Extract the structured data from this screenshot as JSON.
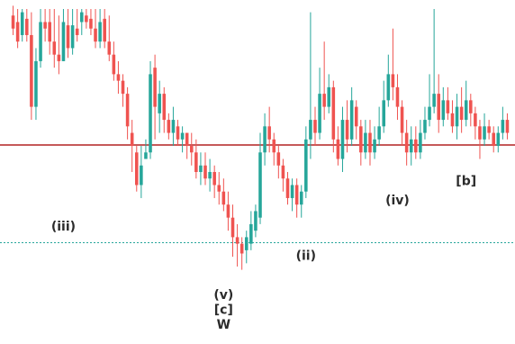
{
  "chart_data": {
    "type": "candlestick",
    "title": "",
    "xlabel": "",
    "ylabel": "",
    "grid": false,
    "legend": "none",
    "ylim": [
      0,
      100
    ],
    "colors": {
      "up": "#26a69a",
      "down": "#ef5350",
      "level_line": "#b22222",
      "dotted_level": "#26a69a",
      "label": "#2b2b2b"
    },
    "levels": {
      "horizontal_line": 58.3,
      "dotted_line": 28.3
    },
    "candles": [
      {
        "o": 98,
        "c": 94,
        "h": 101,
        "l": 92
      },
      {
        "o": 96,
        "c": 90,
        "h": 100,
        "l": 88
      },
      {
        "o": 92,
        "c": 99,
        "h": 100,
        "l": 90
      },
      {
        "o": 97,
        "c": 92,
        "h": 100,
        "l": 90
      },
      {
        "o": 92,
        "c": 70,
        "h": 99,
        "l": 66
      },
      {
        "o": 70,
        "c": 84,
        "h": 88,
        "l": 66
      },
      {
        "o": 84,
        "c": 96,
        "h": 100,
        "l": 82
      },
      {
        "o": 96,
        "c": 94,
        "h": 100,
        "l": 90
      },
      {
        "o": 96,
        "c": 90,
        "h": 100,
        "l": 86
      },
      {
        "o": 90,
        "c": 86,
        "h": 100,
        "l": 82
      },
      {
        "o": 86,
        "c": 84,
        "h": 98,
        "l": 80
      },
      {
        "o": 84,
        "c": 96,
        "h": 100,
        "l": 84
      },
      {
        "o": 95,
        "c": 88,
        "h": 100,
        "l": 85
      },
      {
        "o": 88,
        "c": 95,
        "h": 100,
        "l": 86
      },
      {
        "o": 94,
        "c": 92,
        "h": 100,
        "l": 90
      },
      {
        "o": 96,
        "c": 99,
        "h": 100,
        "l": 92
      },
      {
        "o": 98,
        "c": 96,
        "h": 100,
        "l": 94
      },
      {
        "o": 97,
        "c": 94,
        "h": 100,
        "l": 92
      },
      {
        "o": 94,
        "c": 90,
        "h": 100,
        "l": 88
      },
      {
        "o": 90,
        "c": 96,
        "h": 100,
        "l": 88
      },
      {
        "o": 97,
        "c": 90,
        "h": 100,
        "l": 88
      },
      {
        "o": 90,
        "c": 86,
        "h": 98,
        "l": 84
      },
      {
        "o": 86,
        "c": 80,
        "h": 90,
        "l": 78
      },
      {
        "o": 80,
        "c": 78,
        "h": 84,
        "l": 74
      },
      {
        "o": 78,
        "c": 74,
        "h": 80,
        "l": 70
      },
      {
        "o": 74,
        "c": 64,
        "h": 76,
        "l": 60
      },
      {
        "o": 62,
        "c": 58,
        "h": 66,
        "l": 50
      },
      {
        "o": 56,
        "c": 46,
        "h": 58,
        "l": 44
      },
      {
        "o": 46,
        "c": 52,
        "h": 58,
        "l": 42
      },
      {
        "o": 54,
        "c": 56,
        "h": 60,
        "l": 54
      },
      {
        "o": 56,
        "c": 80,
        "h": 84,
        "l": 54
      },
      {
        "o": 82,
        "c": 70,
        "h": 86,
        "l": 60
      },
      {
        "o": 68,
        "c": 74,
        "h": 78,
        "l": 62
      },
      {
        "o": 74,
        "c": 66,
        "h": 76,
        "l": 62
      },
      {
        "o": 66,
        "c": 62,
        "h": 68,
        "l": 60
      },
      {
        "o": 62,
        "c": 66,
        "h": 70,
        "l": 58
      },
      {
        "o": 64,
        "c": 60,
        "h": 66,
        "l": 58
      },
      {
        "o": 60,
        "c": 62,
        "h": 64,
        "l": 56
      },
      {
        "o": 62,
        "c": 58,
        "h": 62,
        "l": 54
      },
      {
        "o": 58,
        "c": 56,
        "h": 62,
        "l": 52
      },
      {
        "o": 56,
        "c": 50,
        "h": 60,
        "l": 48
      },
      {
        "o": 50,
        "c": 52,
        "h": 56,
        "l": 46
      },
      {
        "o": 52,
        "c": 48,
        "h": 56,
        "l": 46
      },
      {
        "o": 48,
        "c": 50,
        "h": 54,
        "l": 44
      },
      {
        "o": 50,
        "c": 46,
        "h": 52,
        "l": 42
      },
      {
        "o": 46,
        "c": 44,
        "h": 50,
        "l": 40
      },
      {
        "o": 44,
        "c": 40,
        "h": 48,
        "l": 38
      },
      {
        "o": 40,
        "c": 36,
        "h": 44,
        "l": 32
      },
      {
        "o": 36,
        "c": 30,
        "h": 40,
        "l": 24
      },
      {
        "o": 30,
        "c": 28,
        "h": 34,
        "l": 21
      },
      {
        "o": 28,
        "c": 25,
        "h": 30,
        "l": 20
      },
      {
        "o": 26,
        "c": 30,
        "h": 32,
        "l": 22
      },
      {
        "o": 28,
        "c": 34,
        "h": 38,
        "l": 26
      },
      {
        "o": 32,
        "c": 38,
        "h": 40,
        "l": 30
      },
      {
        "o": 36,
        "c": 56,
        "h": 62,
        "l": 34
      },
      {
        "o": 56,
        "c": 64,
        "h": 68,
        "l": 52
      },
      {
        "o": 64,
        "c": 60,
        "h": 70,
        "l": 56
      },
      {
        "o": 60,
        "c": 56,
        "h": 62,
        "l": 52
      },
      {
        "o": 56,
        "c": 52,
        "h": 58,
        "l": 48
      },
      {
        "o": 52,
        "c": 48,
        "h": 54,
        "l": 44
      },
      {
        "o": 48,
        "c": 42,
        "h": 50,
        "l": 40
      },
      {
        "o": 42,
        "c": 46,
        "h": 48,
        "l": 38
      },
      {
        "o": 46,
        "c": 40,
        "h": 48,
        "l": 36
      },
      {
        "o": 40,
        "c": 44,
        "h": 46,
        "l": 36
      },
      {
        "o": 44,
        "c": 60,
        "h": 64,
        "l": 42
      },
      {
        "o": 60,
        "c": 66,
        "h": 99,
        "l": 54
      },
      {
        "o": 66,
        "c": 62,
        "h": 70,
        "l": 58
      },
      {
        "o": 62,
        "c": 74,
        "h": 82,
        "l": 60
      },
      {
        "o": 74,
        "c": 70,
        "h": 90,
        "l": 66
      },
      {
        "o": 70,
        "c": 76,
        "h": 80,
        "l": 68
      },
      {
        "o": 76,
        "c": 60,
        "h": 78,
        "l": 56
      },
      {
        "o": 60,
        "c": 54,
        "h": 64,
        "l": 52
      },
      {
        "o": 54,
        "c": 66,
        "h": 70,
        "l": 50
      },
      {
        "o": 66,
        "c": 60,
        "h": 72,
        "l": 56
      },
      {
        "o": 60,
        "c": 72,
        "h": 76,
        "l": 58
      },
      {
        "o": 70,
        "c": 64,
        "h": 72,
        "l": 60
      },
      {
        "o": 64,
        "c": 56,
        "h": 66,
        "l": 52
      },
      {
        "o": 56,
        "c": 62,
        "h": 66,
        "l": 54
      },
      {
        "o": 62,
        "c": 56,
        "h": 66,
        "l": 52
      },
      {
        "o": 56,
        "c": 60,
        "h": 64,
        "l": 54
      },
      {
        "o": 60,
        "c": 64,
        "h": 70,
        "l": 58
      },
      {
        "o": 64,
        "c": 72,
        "h": 78,
        "l": 62
      },
      {
        "o": 72,
        "c": 80,
        "h": 86,
        "l": 70
      },
      {
        "o": 80,
        "c": 76,
        "h": 94,
        "l": 72
      },
      {
        "o": 76,
        "c": 70,
        "h": 80,
        "l": 66
      },
      {
        "o": 70,
        "c": 62,
        "h": 72,
        "l": 58
      },
      {
        "o": 62,
        "c": 56,
        "h": 66,
        "l": 52
      },
      {
        "o": 56,
        "c": 60,
        "h": 64,
        "l": 52
      },
      {
        "o": 60,
        "c": 56,
        "h": 64,
        "l": 54
      },
      {
        "o": 56,
        "c": 62,
        "h": 66,
        "l": 54
      },
      {
        "o": 62,
        "c": 66,
        "h": 70,
        "l": 60
      },
      {
        "o": 66,
        "c": 70,
        "h": 80,
        "l": 64
      },
      {
        "o": 70,
        "c": 74,
        "h": 100,
        "l": 68
      },
      {
        "o": 74,
        "c": 66,
        "h": 80,
        "l": 62
      },
      {
        "o": 66,
        "c": 72,
        "h": 76,
        "l": 64
      },
      {
        "o": 72,
        "c": 68,
        "h": 76,
        "l": 66
      },
      {
        "o": 68,
        "c": 64,
        "h": 72,
        "l": 62
      },
      {
        "o": 64,
        "c": 70,
        "h": 74,
        "l": 60
      },
      {
        "o": 70,
        "c": 66,
        "h": 76,
        "l": 62
      },
      {
        "o": 66,
        "c": 72,
        "h": 78,
        "l": 64
      },
      {
        "o": 72,
        "c": 68,
        "h": 74,
        "l": 64
      },
      {
        "o": 68,
        "c": 64,
        "h": 70,
        "l": 60
      },
      {
        "o": 64,
        "c": 60,
        "h": 66,
        "l": 54
      },
      {
        "o": 60,
        "c": 64,
        "h": 68,
        "l": 58
      },
      {
        "o": 64,
        "c": 62,
        "h": 66,
        "l": 60
      },
      {
        "o": 62,
        "c": 58,
        "h": 64,
        "l": 56
      },
      {
        "o": 58,
        "c": 62,
        "h": 64,
        "l": 56
      },
      {
        "o": 62,
        "c": 66,
        "h": 70,
        "l": 60
      },
      {
        "o": 66,
        "c": 62,
        "h": 68,
        "l": 60
      }
    ],
    "annotations": [
      {
        "text": "(iii)",
        "x_index": 11,
        "y": 32
      },
      {
        "text": "(v)",
        "x_index": 46,
        "y": 11
      },
      {
        "text": "[c]",
        "x_index": 46,
        "y": 6.5
      },
      {
        "text": "W",
        "x_index": 46,
        "y": 2
      },
      {
        "text": "(ii)",
        "x_index": 64,
        "y": 23
      },
      {
        "text": "(iv)",
        "x_index": 84,
        "y": 40
      },
      {
        "text": "[b]",
        "x_index": 99,
        "y": 46
      }
    ]
  }
}
